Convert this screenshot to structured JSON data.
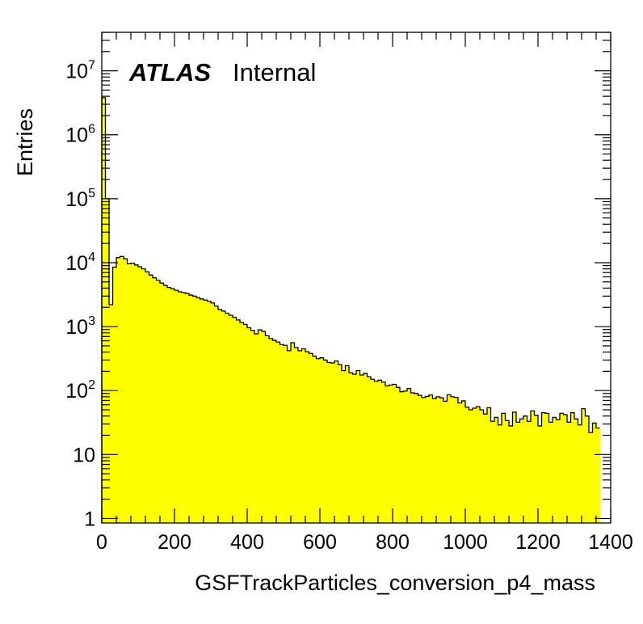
{
  "chart_data": {
    "type": "bar",
    "title": "",
    "xlabel": "GSFTrackParticles_conversion_p4_mass",
    "ylabel": "Entries",
    "annotation": {
      "experiment": "ATLAS",
      "status": "Internal"
    },
    "xlim": [
      0,
      1400
    ],
    "ylim": [
      0.85,
      40000000
    ],
    "y_scale": "log",
    "bin_width": 10,
    "fill_color": "#ffff00",
    "line_color": "#000000",
    "grid": false,
    "legend": "none",
    "x_ticks": [
      {
        "v": 0,
        "label": "0"
      },
      {
        "v": 200,
        "label": "200"
      },
      {
        "v": 400,
        "label": "400"
      },
      {
        "v": 600,
        "label": "600"
      },
      {
        "v": 800,
        "label": "800"
      },
      {
        "v": 1000,
        "label": "1000"
      },
      {
        "v": 1200,
        "label": "1200"
      },
      {
        "v": 1400,
        "label": "1400"
      }
    ],
    "y_ticks": [
      {
        "v": 1,
        "base": "1",
        "exp": ""
      },
      {
        "v": 10,
        "base": "10",
        "exp": ""
      },
      {
        "v": 100,
        "base": "10",
        "exp": "2"
      },
      {
        "v": 1000,
        "base": "10",
        "exp": "3"
      },
      {
        "v": 10000,
        "base": "10",
        "exp": "4"
      },
      {
        "v": 100000,
        "base": "10",
        "exp": "5"
      },
      {
        "v": 1000000,
        "base": "10",
        "exp": "6"
      },
      {
        "v": 10000000,
        "base": "10",
        "exp": "7"
      }
    ],
    "values": [
      3800000,
      100000,
      2200,
      8500,
      12000,
      12500,
      11500,
      9600,
      9800,
      9200,
      8600,
      8000,
      7200,
      6400,
      5800,
      5300,
      4800,
      4400,
      4100,
      3900,
      3700,
      3500,
      3400,
      3300,
      3100,
      3000,
      2850,
      2700,
      2600,
      2500,
      2350,
      2100,
      1850,
      1750,
      1620,
      1500,
      1400,
      1270,
      1160,
      1080,
      960,
      870,
      770,
      890,
      840,
      720,
      650,
      610,
      575,
      525,
      510,
      420,
      560,
      470,
      420,
      450,
      405,
      380,
      345,
      315,
      325,
      300,
      275,
      270,
      290,
      255,
      205,
      245,
      190,
      180,
      205,
      175,
      185,
      165,
      150,
      140,
      145,
      135,
      118,
      122,
      125,
      112,
      96,
      98,
      108,
      92,
      90,
      84,
      78,
      81,
      85,
      75,
      80,
      77,
      68,
      86,
      80,
      78,
      64,
      69,
      55,
      50,
      53,
      56,
      50,
      43,
      54,
      33,
      38,
      29,
      44,
      34,
      28,
      46,
      32,
      36,
      40,
      33,
      48,
      41,
      28,
      45,
      44,
      32,
      38,
      35,
      44,
      42,
      32,
      45,
      36,
      29,
      52,
      40,
      22,
      31,
      26
    ]
  }
}
